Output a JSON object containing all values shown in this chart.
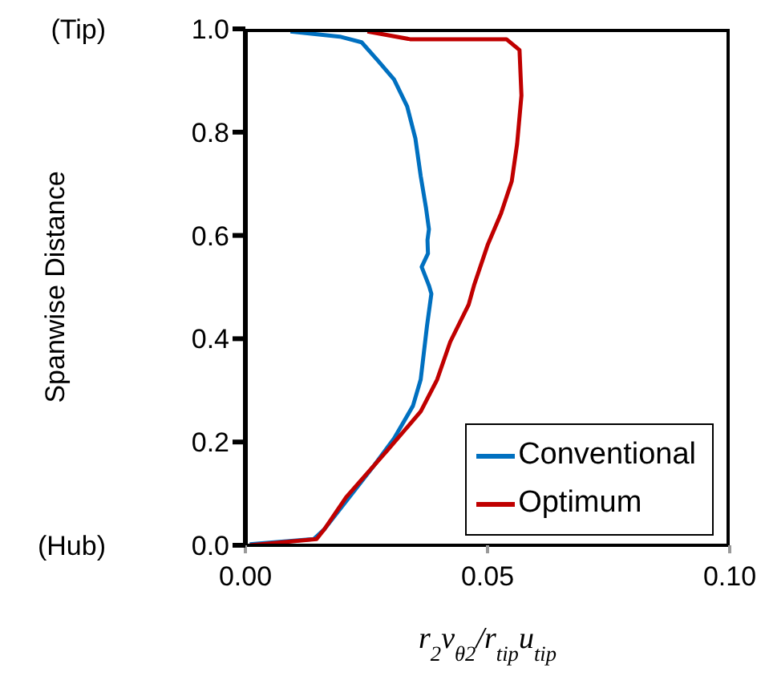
{
  "chart_data": {
    "type": "line",
    "xlabel": "r$_{2}$v$_{θ2}$/r$_{tip}$u$_{tip}$",
    "ylabel": "Spanwise Distance",
    "annotations": [
      "(Tip)",
      "(Hub)"
    ],
    "xlim": [
      0,
      0.1
    ],
    "xticks": [
      {
        "value": 0,
        "label": "0.00"
      },
      {
        "value": 0.05,
        "label": "0.05"
      },
      {
        "value": 0.1,
        "label": "0.10"
      }
    ],
    "ylim": [
      0,
      1
    ],
    "yticks": [
      {
        "value": 0,
        "label": "0.0"
      },
      {
        "value": 0.2,
        "label": "0.2"
      },
      {
        "value": 0.4,
        "label": "0.4"
      },
      {
        "value": 0.6,
        "label": "0.6"
      },
      {
        "value": 0.8,
        "label": "0.8"
      },
      {
        "value": 1,
        "label": "1.0"
      }
    ],
    "grid": false,
    "legend": "bottom right",
    "marker": "none",
    "line_style": "solid",
    "series": [
      {
        "name": "Conventional",
        "color": "#0070c0",
        "x": [
          0.0093,
          0.0195,
          0.024,
          0.0274,
          0.0307,
          0.0334,
          0.0351,
          0.0362,
          0.0373,
          0.0379,
          0.0376,
          0.0377,
          0.0364,
          0.0379,
          0.0384,
          0.0375,
          0.0362,
          0.0346,
          0.0307,
          0.0266,
          0.0163,
          0.0141,
          0.0009
        ],
        "values": [
          0.995,
          0.985,
          0.974,
          0.938,
          0.902,
          0.85,
          0.788,
          0.715,
          0.653,
          0.612,
          0.591,
          0.565,
          0.539,
          0.503,
          0.487,
          0.425,
          0.321,
          0.27,
          0.207,
          0.155,
          0.031,
          0.012,
          0.002
        ]
      },
      {
        "name": "Optimum",
        "color": "#c00000",
        "x": [
          0.0252,
          0.034,
          0.0539,
          0.0566,
          0.057,
          0.0561,
          0.055,
          0.0528,
          0.05,
          0.0472,
          0.0461,
          0.0423,
          0.0396,
          0.0362,
          0.0296,
          0.0208,
          0.0163,
          0.0147,
          0.0009
        ],
        "values": [
          0.995,
          0.98,
          0.98,
          0.959,
          0.871,
          0.777,
          0.705,
          0.643,
          0.581,
          0.503,
          0.466,
          0.394,
          0.321,
          0.259,
          0.187,
          0.093,
          0.031,
          0.012,
          0.0
        ]
      }
    ]
  }
}
